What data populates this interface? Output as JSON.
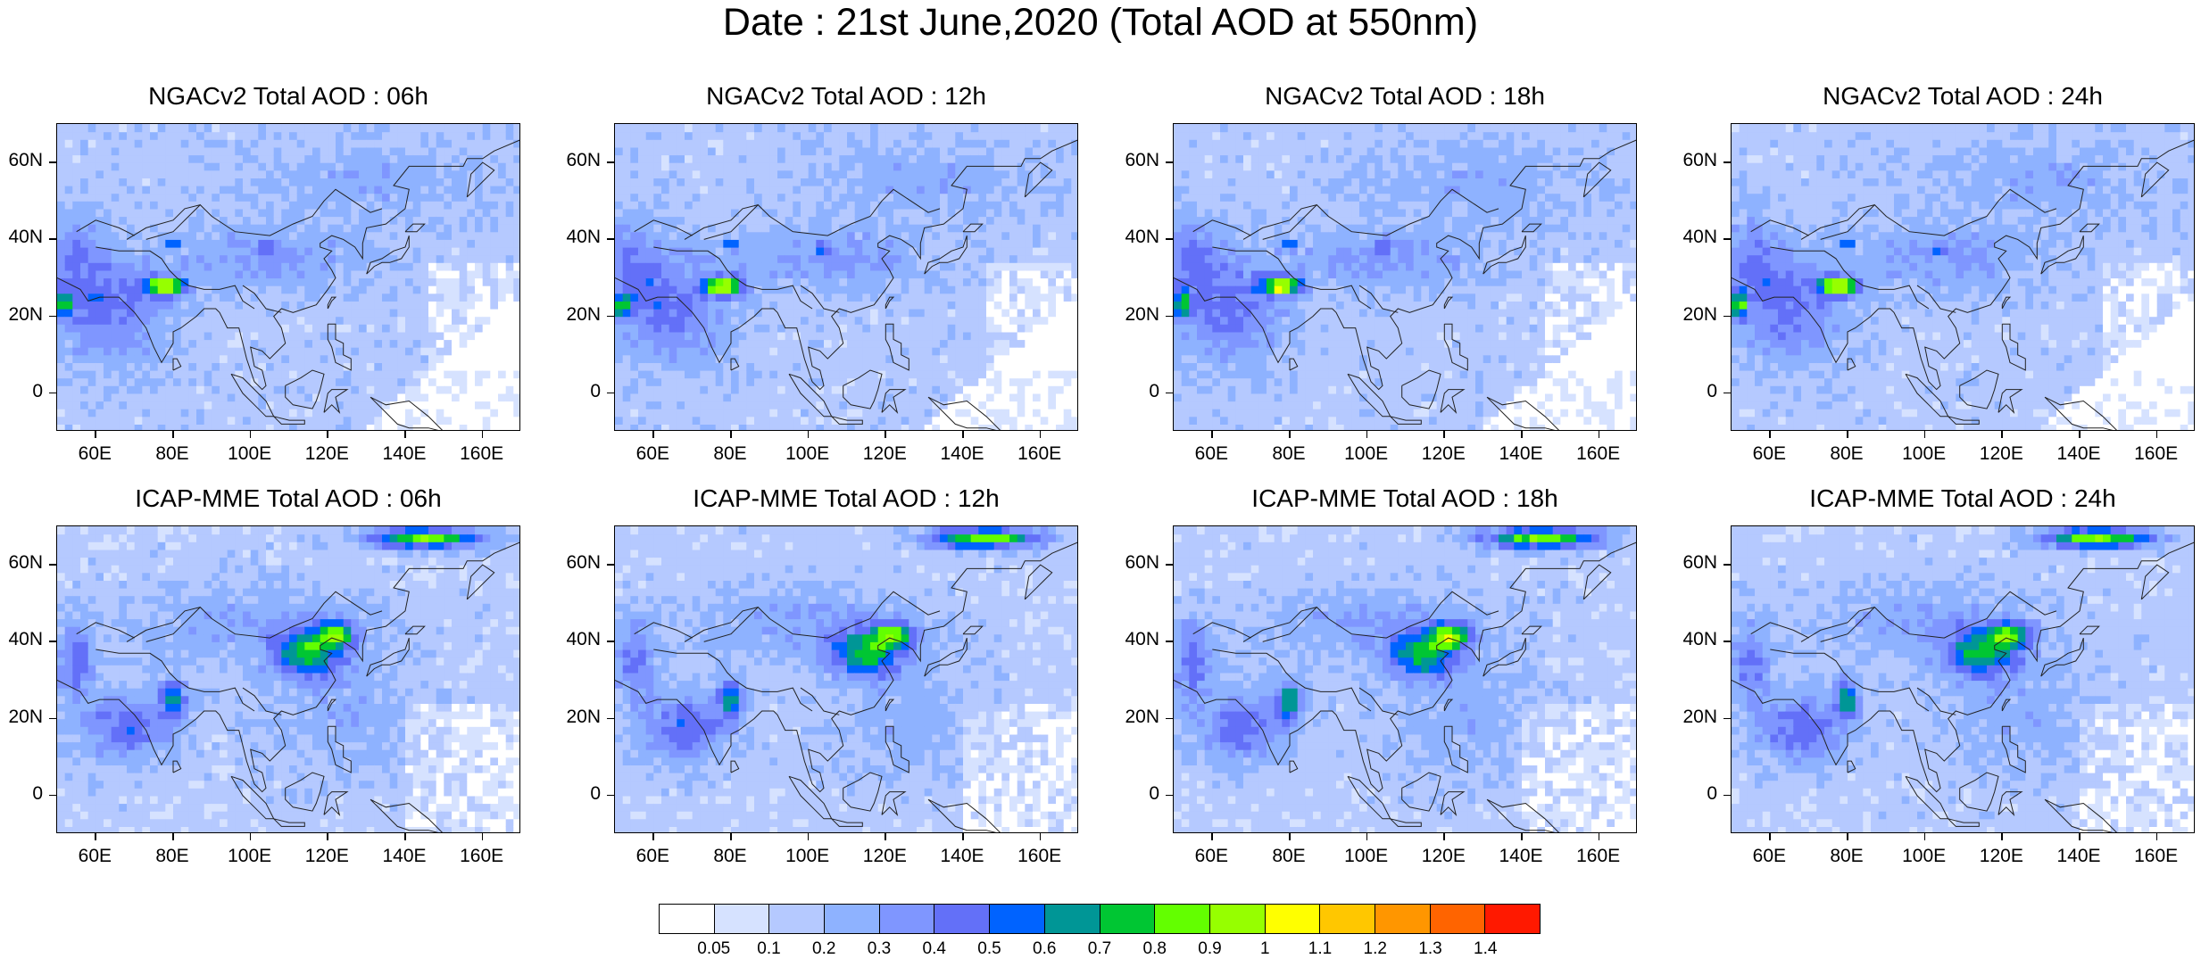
{
  "title": "Date : 21st June,2020 (Total AOD at 550nm)",
  "panels": [
    {
      "title": "NGACv2 Total AOD : 06h",
      "model": "ngac"
    },
    {
      "title": "NGACv2 Total AOD : 12h",
      "model": "ngac"
    },
    {
      "title": "NGACv2 Total AOD : 18h",
      "model": "ngac"
    },
    {
      "title": "NGACv2 Total AOD : 24h",
      "model": "ngac"
    },
    {
      "title": "ICAP-MME Total AOD : 06h",
      "model": "icap"
    },
    {
      "title": "ICAP-MME Total AOD : 12h",
      "model": "icap"
    },
    {
      "title": "ICAP-MME Total AOD : 18h",
      "model": "icap"
    },
    {
      "title": "ICAP-MME Total AOD : 24h",
      "model": "icap"
    }
  ],
  "axes": {
    "lat_labels": [
      "60N",
      "40N",
      "20N",
      "0"
    ],
    "lat_values": [
      60,
      40,
      20,
      0
    ],
    "lon_labels": [
      "60E",
      "80E",
      "100E",
      "120E",
      "140E",
      "160E"
    ],
    "lon_values": [
      60,
      80,
      100,
      120,
      140,
      160
    ],
    "lat_range": [
      -10,
      70
    ],
    "lon_range": [
      50,
      170
    ]
  },
  "colorbar": {
    "labels": [
      "0.05",
      "0.1",
      "0.2",
      "0.3",
      "0.4",
      "0.5",
      "0.6",
      "0.7",
      "0.8",
      "0.9",
      "1",
      "1.1",
      "1.2",
      "1.3",
      "1.4"
    ],
    "colors": [
      "#ffffff",
      "#d6e2ff",
      "#b5c9ff",
      "#8eb2ff",
      "#7f96ff",
      "#6370f8",
      "#0063ff",
      "#009696",
      "#00c633",
      "#63ff00",
      "#96ff00",
      "#ffff00",
      "#ffc700",
      "#ff9600",
      "#ff6400",
      "#ff1900"
    ]
  }
}
